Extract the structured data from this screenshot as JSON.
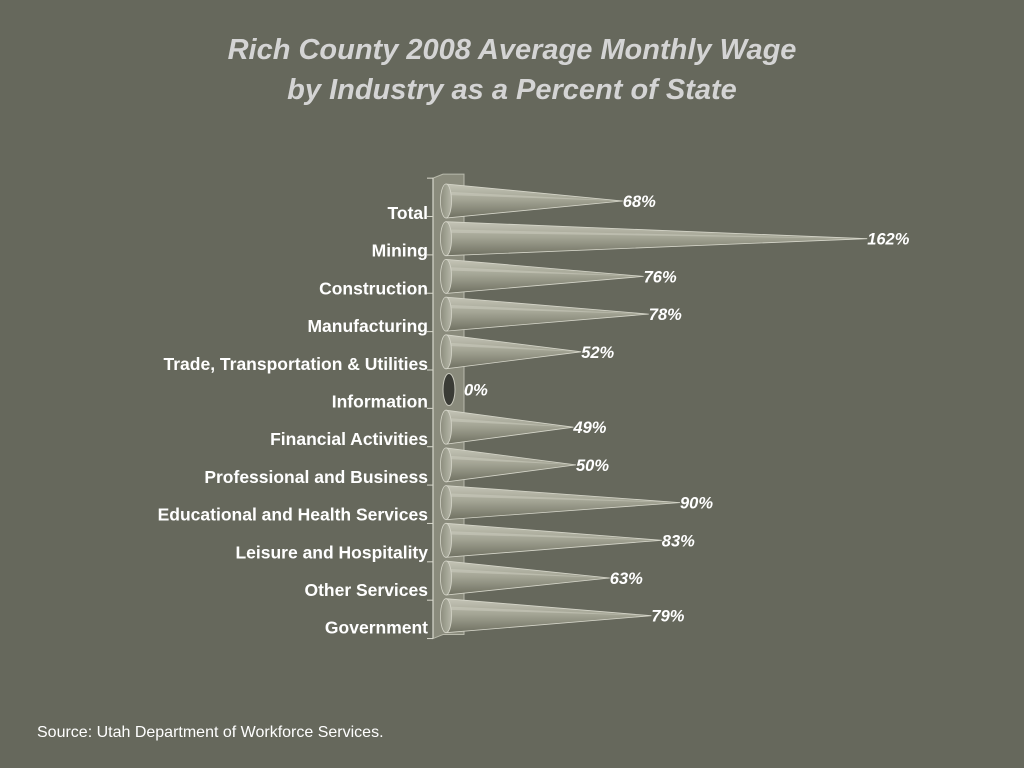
{
  "chart_data": {
    "type": "bar",
    "title_lines": [
      "Rich County 2008 Average Monthly Wage",
      "by Industry as a Percent of State"
    ],
    "categories": [
      "Total",
      "Mining",
      "Construction",
      "Manufacturing",
      "Trade, Transportation & Utilities",
      "Information",
      "Financial Activities",
      "Professional and Business",
      "Educational and Health Services",
      "Leisure and Hospitality",
      "Other Services",
      "Government"
    ],
    "values": [
      68,
      162,
      76,
      78,
      52,
      0,
      49,
      50,
      90,
      83,
      63,
      79
    ],
    "value_labels": [
      "68%",
      "162%",
      "76%",
      "78%",
      "52%",
      "0%",
      "49%",
      "50%",
      "90%",
      "83%",
      "63%",
      "79%"
    ],
    "orientation": "horizontal",
    "bar_shape": "cone",
    "xlabel": "",
    "ylabel": "",
    "grid": false,
    "legend": "none"
  },
  "footer": {
    "source": "Source: Utah Department of Workforce Services."
  },
  "colors": {
    "background": "#66685c",
    "title": "#d4d4d4",
    "text": "#ffffff",
    "cone_light": "#aeae9f",
    "cone_dark": "#7f806f"
  }
}
